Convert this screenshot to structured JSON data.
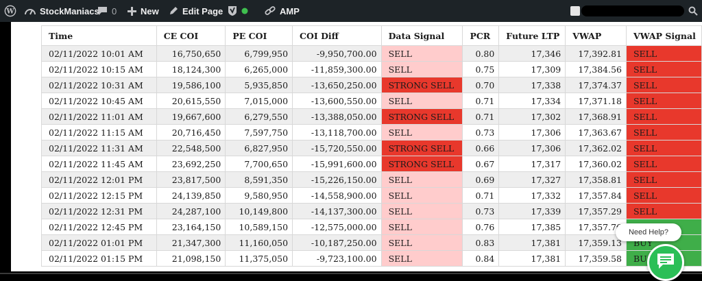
{
  "adminbar": {
    "site_name": "StockManiacs",
    "comments_count": "0",
    "new_label": "New",
    "edit_label": "Edit Page",
    "amp_label": "AMP"
  },
  "table": {
    "headers": [
      "Time",
      "CE COI",
      "PE COI",
      "COI Diff",
      "Data Signal",
      "PCR",
      "Future LTP",
      "VWAP",
      "VWAP Signal"
    ],
    "rows": [
      [
        "02/11/2022 10:01 AM",
        "16,750,650",
        "6,799,950",
        "-9,950,700.00",
        "SELL",
        "0.80",
        "17,346",
        "17,392.81",
        "SELL"
      ],
      [
        "02/11/2022 10:15 AM",
        "18,124,300",
        "6,265,000",
        "-11,859,300.00",
        "SELL",
        "0.75",
        "17,309",
        "17,384.56",
        "SELL"
      ],
      [
        "02/11/2022 10:31 AM",
        "19,586,100",
        "5,935,850",
        "-13,650,250.00",
        "STRONG SELL",
        "0.70",
        "17,338",
        "17,374.37",
        "SELL"
      ],
      [
        "02/11/2022 10:45 AM",
        "20,615,550",
        "7,015,000",
        "-13,600,550.00",
        "SELL",
        "0.71",
        "17,334",
        "17,371.18",
        "SELL"
      ],
      [
        "02/11/2022 11:01 AM",
        "19,667,600",
        "6,279,550",
        "-13,388,050.00",
        "STRONG SELL",
        "0.71",
        "17,302",
        "17,368.91",
        "SELL"
      ],
      [
        "02/11/2022 11:15 AM",
        "20,716,450",
        "7,597,750",
        "-13,118,700.00",
        "SELL",
        "0.73",
        "17,306",
        "17,363.67",
        "SELL"
      ],
      [
        "02/11/2022 11:31 AM",
        "22,548,500",
        "6,827,950",
        "-15,720,550.00",
        "STRONG SELL",
        "0.66",
        "17,306",
        "17,362.02",
        "SELL"
      ],
      [
        "02/11/2022 11:45 AM",
        "23,692,250",
        "7,700,650",
        "-15,991,600.00",
        "STRONG SELL",
        "0.67",
        "17,317",
        "17,360.02",
        "SELL"
      ],
      [
        "02/11/2022 12:01 PM",
        "23,817,500",
        "8,591,350",
        "-15,226,150.00",
        "SELL",
        "0.69",
        "17,327",
        "17,358.81",
        "SELL"
      ],
      [
        "02/11/2022 12:15 PM",
        "24,139,850",
        "9,580,950",
        "-14,558,900.00",
        "SELL",
        "0.71",
        "17,332",
        "17,357.84",
        "SELL"
      ],
      [
        "02/11/2022 12:31 PM",
        "24,287,100",
        "10,149,800",
        "-14,137,300.00",
        "SELL",
        "0.73",
        "17,339",
        "17,357.29",
        "SELL"
      ],
      [
        "02/11/2022 12:45 PM",
        "23,164,150",
        "10,589,150",
        "-12,575,000.00",
        "SELL",
        "0.76",
        "17,385",
        "17,357.7€",
        ""
      ],
      [
        "02/11/2022 01:01 PM",
        "21,347,300",
        "11,160,050",
        "-10,187,250.00",
        "SELL",
        "0.83",
        "17,381",
        "17,359.13",
        "BUY"
      ],
      [
        "02/11/2022 01:15 PM",
        "21,098,150",
        "11,375,050",
        "-9,723,100.00",
        "SELL",
        "0.84",
        "17,381",
        "17,359.58",
        "BU"
      ]
    ],
    "vwap_signal_colors": [
      "red",
      "red",
      "red",
      "red",
      "red",
      "red",
      "red",
      "red",
      "red",
      "red",
      "red",
      "green",
      "green",
      "green"
    ]
  },
  "help": {
    "label": "Need Help?"
  },
  "colors": {
    "sell_light": "#ffcccc",
    "strong_sell": "#e8382c",
    "buy_green": "#3fae49",
    "chat_green": "#2bbf57"
  },
  "icons": [
    "wordpress-icon",
    "speedometer-icon",
    "comment-icon",
    "plus-icon",
    "pencil-icon",
    "shield-icon",
    "status-dot-icon",
    "link-icon",
    "search-icon",
    "chat-icon"
  ]
}
